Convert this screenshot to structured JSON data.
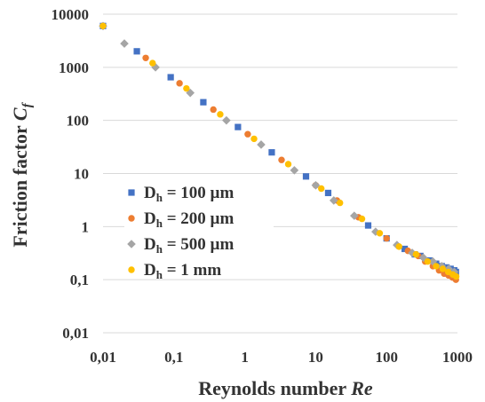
{
  "chart_data": {
    "type": "scatter",
    "title": "",
    "xlabel": "Reynolds number Re",
    "xlabel_parts": [
      "Reynolds number ",
      "Re"
    ],
    "ylabel": "Friction factor Cf",
    "ylabel_parts": [
      "Friction factor ",
      "C",
      "f"
    ],
    "xscale": "log",
    "yscale": "log",
    "xlim": [
      0.01,
      1000
    ],
    "ylim": [
      0.01,
      10000
    ],
    "x_ticks": [
      0.01,
      0.1,
      1,
      10,
      100,
      1000
    ],
    "x_tick_labels": [
      "0,01",
      "0,1",
      "1",
      "10",
      "100",
      "1000"
    ],
    "y_ticks": [
      0.01,
      0.1,
      1,
      10,
      100,
      1000,
      10000
    ],
    "y_tick_labels": [
      "0,01",
      "0,1",
      "1",
      "10",
      "100",
      "1000",
      "10000"
    ],
    "grid": "horizontal major",
    "legend_position": "center-left",
    "series": [
      {
        "name": "Dh = 100 µm",
        "label_parts": [
          "D",
          "h",
          " = 100 µm"
        ],
        "color": "#4472C4",
        "marker": "square",
        "points": [
          [
            0.01,
            6000
          ],
          [
            0.03,
            2000
          ],
          [
            0.09,
            650
          ],
          [
            0.26,
            220
          ],
          [
            0.8,
            75
          ],
          [
            2.4,
            25
          ],
          [
            7.3,
            8.8
          ],
          [
            15,
            4.3
          ],
          [
            55,
            1.05
          ],
          [
            100,
            0.6
          ],
          [
            180,
            0.38
          ],
          [
            250,
            0.3
          ],
          [
            300,
            0.28
          ],
          [
            400,
            0.23
          ],
          [
            500,
            0.2
          ],
          [
            600,
            0.18
          ],
          [
            700,
            0.17
          ],
          [
            800,
            0.16
          ],
          [
            900,
            0.15
          ],
          [
            950,
            0.14
          ]
        ]
      },
      {
        "name": "Dh = 200 µm",
        "label_parts": [
          "D",
          "h",
          " = 200 µm"
        ],
        "color": "#ED7D31",
        "marker": "circle",
        "points": [
          [
            0.01,
            6000
          ],
          [
            0.04,
            1500
          ],
          [
            0.12,
            500
          ],
          [
            0.36,
            160
          ],
          [
            1.1,
            55
          ],
          [
            3.3,
            18
          ],
          [
            10,
            6
          ],
          [
            20,
            3.1
          ],
          [
            40,
            1.5
          ],
          [
            100,
            0.6
          ],
          [
            200,
            0.35
          ],
          [
            280,
            0.28
          ],
          [
            350,
            0.22
          ],
          [
            450,
            0.18
          ],
          [
            550,
            0.15
          ],
          [
            650,
            0.13
          ],
          [
            750,
            0.12
          ],
          [
            850,
            0.11
          ],
          [
            950,
            0.1
          ]
        ]
      },
      {
        "name": "Dh = 500 µm",
        "label_parts": [
          "D",
          "h",
          " = 500 µm"
        ],
        "color": "#A5A5A5",
        "marker": "diamond",
        "points": [
          [
            0.01,
            6000
          ],
          [
            0.02,
            2800
          ],
          [
            0.055,
            1000
          ],
          [
            0.17,
            330
          ],
          [
            0.55,
            100
          ],
          [
            1.7,
            35
          ],
          [
            5,
            11.5
          ],
          [
            10,
            6
          ],
          [
            18,
            3.1
          ],
          [
            35,
            1.6
          ],
          [
            70,
            0.8
          ],
          [
            140,
            0.45
          ],
          [
            230,
            0.32
          ],
          [
            330,
            0.26
          ],
          [
            450,
            0.22
          ],
          [
            600,
            0.18
          ],
          [
            750,
            0.16
          ],
          [
            900,
            0.14
          ]
        ]
      },
      {
        "name": "Dh = 1 mm",
        "label_parts": [
          "D",
          "h",
          " = 1 mm"
        ],
        "color": "#FFC000",
        "marker": "circle",
        "points": [
          [
            0.01,
            6000
          ],
          [
            0.05,
            1200
          ],
          [
            0.15,
            400
          ],
          [
            0.45,
            130
          ],
          [
            1.35,
            45
          ],
          [
            4.1,
            15
          ],
          [
            12,
            5.2
          ],
          [
            22,
            2.8
          ],
          [
            45,
            1.4
          ],
          [
            80,
            0.75
          ],
          [
            150,
            0.42
          ],
          [
            260,
            0.3
          ],
          [
            380,
            0.22
          ],
          [
            500,
            0.18
          ],
          [
            620,
            0.16
          ],
          [
            740,
            0.14
          ],
          [
            860,
            0.125
          ],
          [
            960,
            0.115
          ]
        ]
      }
    ]
  }
}
